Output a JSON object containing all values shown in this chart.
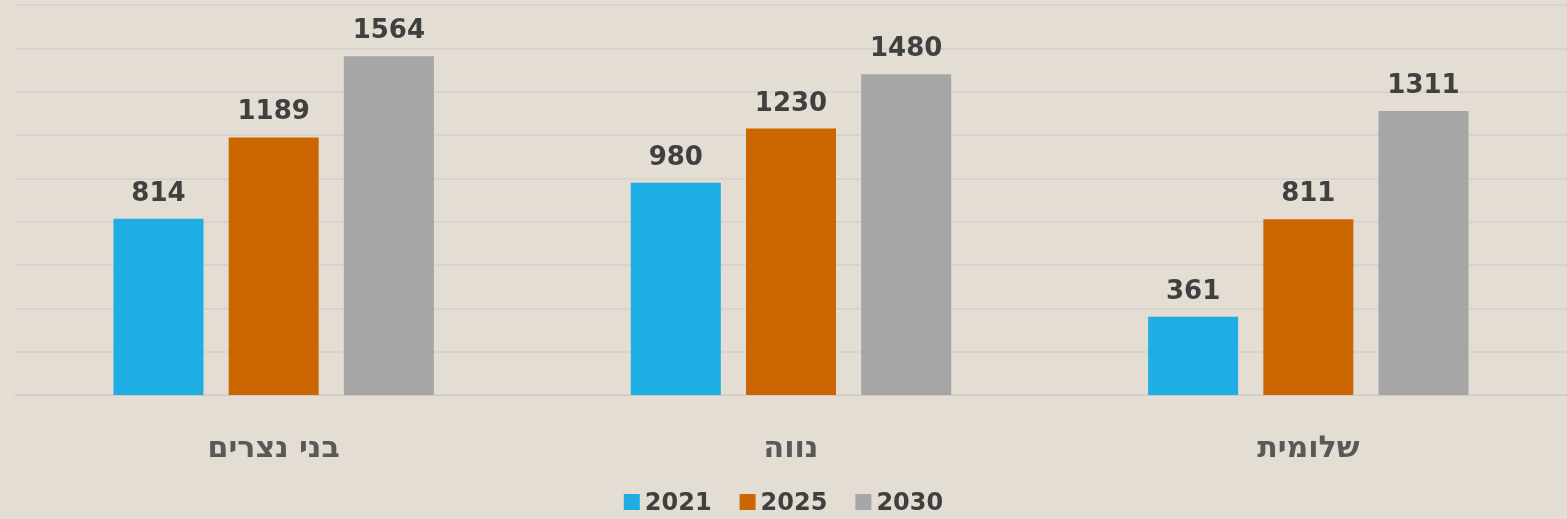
{
  "chart_data": {
    "type": "bar",
    "categories": [
      "בני נצרים",
      "נווה",
      "שלומית"
    ],
    "series": [
      {
        "name": "2021",
        "color": "#1eaee3",
        "values": [
          814,
          980,
          361
        ]
      },
      {
        "name": "2025",
        "color": "#cc6600",
        "values": [
          1189,
          1230,
          811
        ]
      },
      {
        "name": "2030",
        "color": "#a6a6a6",
        "values": [
          1564,
          1480,
          1311
        ]
      }
    ],
    "ylim": [
      0,
      1800
    ],
    "yticks": [
      {
        "value": 0,
        "label": null
      },
      {
        "value": 200,
        "label": null
      },
      {
        "value": 400,
        "label": null
      },
      {
        "value": 600,
        "label": null
      },
      {
        "value": 800,
        "label": null
      },
      {
        "value": 1000,
        "label": null
      },
      {
        "value": 1200,
        "label": null
      },
      {
        "value": 1400,
        "label": null
      },
      {
        "value": 1600,
        "label": null
      },
      {
        "value": 1800,
        "label": null
      }
    ],
    "grid": "y",
    "legend": "bottom",
    "data_labels": true,
    "tick_labels": "x"
  }
}
